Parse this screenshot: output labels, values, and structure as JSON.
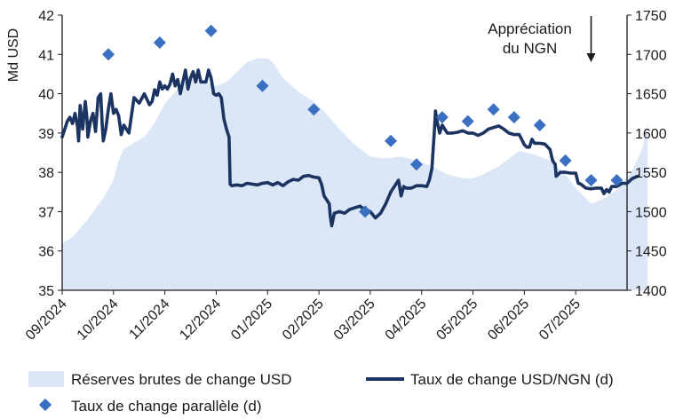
{
  "chart_data": {
    "type": "line",
    "title": "",
    "ylabel_left": "Md USD",
    "ylabel_right": "",
    "y_left": {
      "min": 35,
      "max": 42,
      "ticks": [
        "35",
        "36",
        "37",
        "38",
        "39",
        "40",
        "41",
        "42"
      ]
    },
    "y_right": {
      "min": 1400,
      "max": 1750,
      "ticks": [
        "1400",
        "1450",
        "1500",
        "1550",
        "1600",
        "1650",
        "1700",
        "1750"
      ]
    },
    "x_labels": [
      "09/2024",
      "10/2024",
      "11/2024",
      "12/2024",
      "01/2025",
      "02/2025",
      "03/2025",
      "04/2025",
      "05/2025",
      "06/2025",
      "07/2025"
    ],
    "annotation": {
      "line1": "Appréciation",
      "line2": "du NGN",
      "x": 10.3
    },
    "series": [
      {
        "name": "Réserves brutes de change USD",
        "kind": "area",
        "axis": "left",
        "color": "#dbe6f6",
        "points": [
          [
            0,
            36.2
          ],
          [
            0.2,
            36.35
          ],
          [
            0.5,
            36.8
          ],
          [
            0.8,
            37.35
          ],
          [
            1.0,
            37.8
          ],
          [
            1.1,
            38.3
          ],
          [
            1.2,
            38.6
          ],
          [
            1.4,
            38.75
          ],
          [
            1.6,
            38.9
          ],
          [
            1.8,
            39.25
          ],
          [
            2.0,
            39.75
          ],
          [
            2.2,
            40.05
          ],
          [
            2.4,
            40.3
          ],
          [
            2.6,
            40.45
          ],
          [
            2.8,
            40.3
          ],
          [
            3.0,
            40.2
          ],
          [
            3.2,
            40.3
          ],
          [
            3.4,
            40.55
          ],
          [
            3.6,
            40.8
          ],
          [
            3.8,
            40.9
          ],
          [
            4.0,
            40.9
          ],
          [
            4.1,
            40.8
          ],
          [
            4.3,
            40.4
          ],
          [
            4.6,
            40.05
          ],
          [
            4.9,
            39.8
          ],
          [
            5.1,
            39.55
          ],
          [
            5.4,
            39.1
          ],
          [
            5.7,
            38.7
          ],
          [
            6.0,
            38.4
          ],
          [
            6.3,
            38.35
          ],
          [
            6.6,
            38.4
          ],
          [
            6.9,
            38.3
          ],
          [
            7.2,
            38.15
          ],
          [
            7.5,
            37.95
          ],
          [
            7.8,
            37.85
          ],
          [
            8.0,
            37.85
          ],
          [
            8.2,
            37.95
          ],
          [
            8.5,
            38.15
          ],
          [
            8.7,
            38.35
          ],
          [
            8.9,
            38.55
          ],
          [
            9.2,
            38.45
          ],
          [
            9.5,
            38.3
          ],
          [
            9.8,
            37.95
          ],
          [
            10.0,
            37.6
          ],
          [
            10.3,
            37.2
          ],
          [
            10.5,
            37.3
          ],
          [
            10.8,
            37.55
          ],
          [
            11.1,
            38.05
          ],
          [
            11.3,
            38.6
          ],
          [
            11.4,
            39.25
          ]
        ]
      },
      {
        "name": "Taux de change USD/NGN (d)",
        "kind": "line",
        "axis": "right",
        "color": "#1c3461",
        "points": [
          [
            0,
            1595
          ],
          [
            0.05,
            1605
          ],
          [
            0.1,
            1615
          ],
          [
            0.15,
            1620
          ],
          [
            0.2,
            1612
          ],
          [
            0.25,
            1625
          ],
          [
            0.3,
            1608
          ],
          [
            0.32,
            1590
          ],
          [
            0.35,
            1635
          ],
          [
            0.4,
            1605
          ],
          [
            0.45,
            1640
          ],
          [
            0.48,
            1620
          ],
          [
            0.5,
            1595
          ],
          [
            0.55,
            1615
          ],
          [
            0.6,
            1625
          ],
          [
            0.65,
            1602
          ],
          [
            0.7,
            1645
          ],
          [
            0.75,
            1650
          ],
          [
            0.78,
            1610
          ],
          [
            0.8,
            1590
          ],
          [
            0.85,
            1605
          ],
          [
            0.9,
            1630
          ],
          [
            0.95,
            1650
          ],
          [
            1.0,
            1625
          ],
          [
            1.05,
            1630
          ],
          [
            1.1,
            1622
          ],
          [
            1.15,
            1598
          ],
          [
            1.2,
            1610
          ],
          [
            1.3,
            1600
          ],
          [
            1.4,
            1645
          ],
          [
            1.5,
            1638
          ],
          [
            1.6,
            1650
          ],
          [
            1.7,
            1636
          ],
          [
            1.75,
            1640
          ],
          [
            1.8,
            1655
          ],
          [
            1.85,
            1648
          ],
          [
            1.9,
            1665
          ],
          [
            1.95,
            1656
          ],
          [
            2.0,
            1660
          ],
          [
            2.05,
            1656
          ],
          [
            2.1,
            1662
          ],
          [
            2.15,
            1675
          ],
          [
            2.2,
            1660
          ],
          [
            2.25,
            1668
          ],
          [
            2.3,
            1650
          ],
          [
            2.35,
            1665
          ],
          [
            2.4,
            1680
          ],
          [
            2.45,
            1656
          ],
          [
            2.5,
            1670
          ],
          [
            2.55,
            1678
          ],
          [
            2.6,
            1665
          ],
          [
            2.65,
            1680
          ],
          [
            2.7,
            1665
          ],
          [
            2.8,
            1665
          ],
          [
            2.85,
            1680
          ],
          [
            2.9,
            1670
          ],
          [
            2.95,
            1650
          ],
          [
            3.0,
            1648
          ],
          [
            3.05,
            1650
          ],
          [
            3.1,
            1645
          ],
          [
            3.15,
            1618
          ],
          [
            3.2,
            1605
          ],
          [
            3.25,
            1595
          ],
          [
            3.27,
            1535
          ],
          [
            3.3,
            1533
          ],
          [
            3.4,
            1534
          ],
          [
            3.5,
            1533
          ],
          [
            3.6,
            1536
          ],
          [
            3.7,
            1535
          ],
          [
            3.8,
            1534
          ],
          [
            3.9,
            1536
          ],
          [
            4.0,
            1537
          ],
          [
            4.1,
            1534
          ],
          [
            4.2,
            1537
          ],
          [
            4.3,
            1533
          ],
          [
            4.4,
            1538
          ],
          [
            4.5,
            1541
          ],
          [
            4.6,
            1540
          ],
          [
            4.7,
            1545
          ],
          [
            4.8,
            1546
          ],
          [
            4.9,
            1544
          ],
          [
            5.0,
            1543
          ],
          [
            5.05,
            1535
          ],
          [
            5.1,
            1520
          ],
          [
            5.15,
            1515
          ],
          [
            5.2,
            1510
          ],
          [
            5.22,
            1495
          ],
          [
            5.25,
            1482
          ],
          [
            5.3,
            1498
          ],
          [
            5.4,
            1500
          ],
          [
            5.5,
            1498
          ],
          [
            5.6,
            1503
          ],
          [
            5.7,
            1505
          ],
          [
            5.8,
            1507
          ],
          [
            5.9,
            1502
          ],
          [
            6.0,
            1500
          ],
          [
            6.05,
            1496
          ],
          [
            6.1,
            1492
          ],
          [
            6.2,
            1498
          ],
          [
            6.3,
            1510
          ],
          [
            6.4,
            1525
          ],
          [
            6.5,
            1535
          ],
          [
            6.55,
            1540
          ],
          [
            6.6,
            1520
          ],
          [
            6.65,
            1532
          ],
          [
            6.7,
            1530
          ],
          [
            6.8,
            1530
          ],
          [
            6.9,
            1533
          ],
          [
            7.0,
            1533
          ],
          [
            7.1,
            1532
          ],
          [
            7.15,
            1540
          ],
          [
            7.2,
            1555
          ],
          [
            7.25,
            1605
          ],
          [
            7.27,
            1628
          ],
          [
            7.3,
            1615
          ],
          [
            7.35,
            1600
          ],
          [
            7.4,
            1610
          ],
          [
            7.5,
            1600
          ],
          [
            7.6,
            1600
          ],
          [
            7.7,
            1601
          ],
          [
            7.8,
            1603
          ],
          [
            7.9,
            1600
          ],
          [
            8.0,
            1600
          ],
          [
            8.1,
            1597
          ],
          [
            8.2,
            1600
          ],
          [
            8.3,
            1605
          ],
          [
            8.4,
            1607
          ],
          [
            8.5,
            1609
          ],
          [
            8.6,
            1605
          ],
          [
            8.7,
            1600
          ],
          [
            8.8,
            1598
          ],
          [
            8.9,
            1598
          ],
          [
            9.0,
            1585
          ],
          [
            9.05,
            1582
          ],
          [
            9.1,
            1582
          ],
          [
            9.15,
            1592
          ],
          [
            9.2,
            1587
          ],
          [
            9.3,
            1587
          ],
          [
            9.4,
            1586
          ],
          [
            9.5,
            1579
          ],
          [
            9.55,
            1565
          ],
          [
            9.6,
            1560
          ],
          [
            9.62,
            1545
          ],
          [
            9.7,
            1550
          ],
          [
            9.8,
            1550
          ],
          [
            9.9,
            1549
          ],
          [
            10.0,
            1549
          ],
          [
            10.05,
            1536
          ],
          [
            10.1,
            1535
          ],
          [
            10.2,
            1530
          ],
          [
            10.3,
            1529
          ],
          [
            10.4,
            1530
          ],
          [
            10.5,
            1530
          ],
          [
            10.55,
            1523
          ],
          [
            10.6,
            1528
          ],
          [
            10.65,
            1525
          ],
          [
            10.7,
            1532
          ],
          [
            10.8,
            1532
          ],
          [
            10.9,
            1536
          ],
          [
            11.0,
            1536
          ],
          [
            11.1,
            1542
          ],
          [
            11.2,
            1545
          ]
        ]
      },
      {
        "name": "Taux de change parallèle (d)",
        "kind": "scatter",
        "axis": "right",
        "color": "#3a6fc1",
        "points": [
          [
            0.9,
            1700
          ],
          [
            1.9,
            1715
          ],
          [
            2.9,
            1730
          ],
          [
            3.9,
            1660
          ],
          [
            4.9,
            1630
          ],
          [
            5.9,
            1500
          ],
          [
            6.4,
            1590
          ],
          [
            6.9,
            1560
          ],
          [
            7.4,
            1620
          ],
          [
            7.9,
            1615
          ],
          [
            8.4,
            1630
          ],
          [
            8.8,
            1620
          ],
          [
            9.3,
            1610
          ],
          [
            9.8,
            1565
          ],
          [
            10.3,
            1540
          ],
          [
            10.8,
            1540
          ]
        ]
      }
    ],
    "legend_position": "bottom",
    "grid": false
  }
}
